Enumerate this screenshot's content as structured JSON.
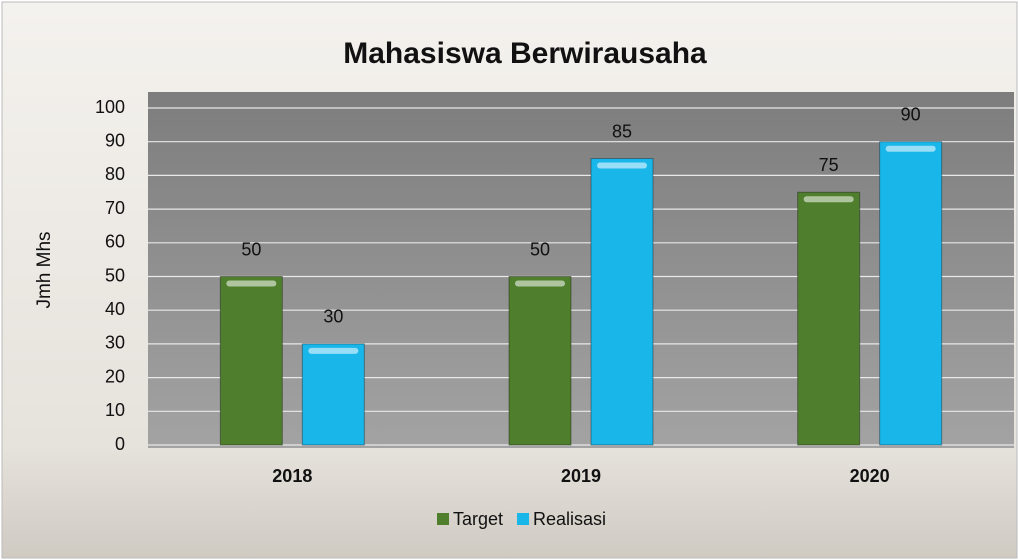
{
  "chart_data": {
    "type": "bar",
    "title": "Mahasiswa Berwirausaha",
    "y_label": "Jmh Mhs",
    "categories": [
      "2018",
      "2019",
      "2020"
    ],
    "series": [
      {
        "name": "Target",
        "color": "#4f7f2c",
        "values": [
          50,
          50,
          75
        ]
      },
      {
        "name": "Realisasi",
        "color": "#19b6ea",
        "values": [
          30,
          85,
          90
        ]
      }
    ],
    "ylim": [
      0,
      100
    ],
    "yticks": [
      0,
      10,
      20,
      30,
      40,
      50,
      60,
      70,
      80,
      90,
      100
    ],
    "grid": true,
    "legend": "bottom"
  }
}
